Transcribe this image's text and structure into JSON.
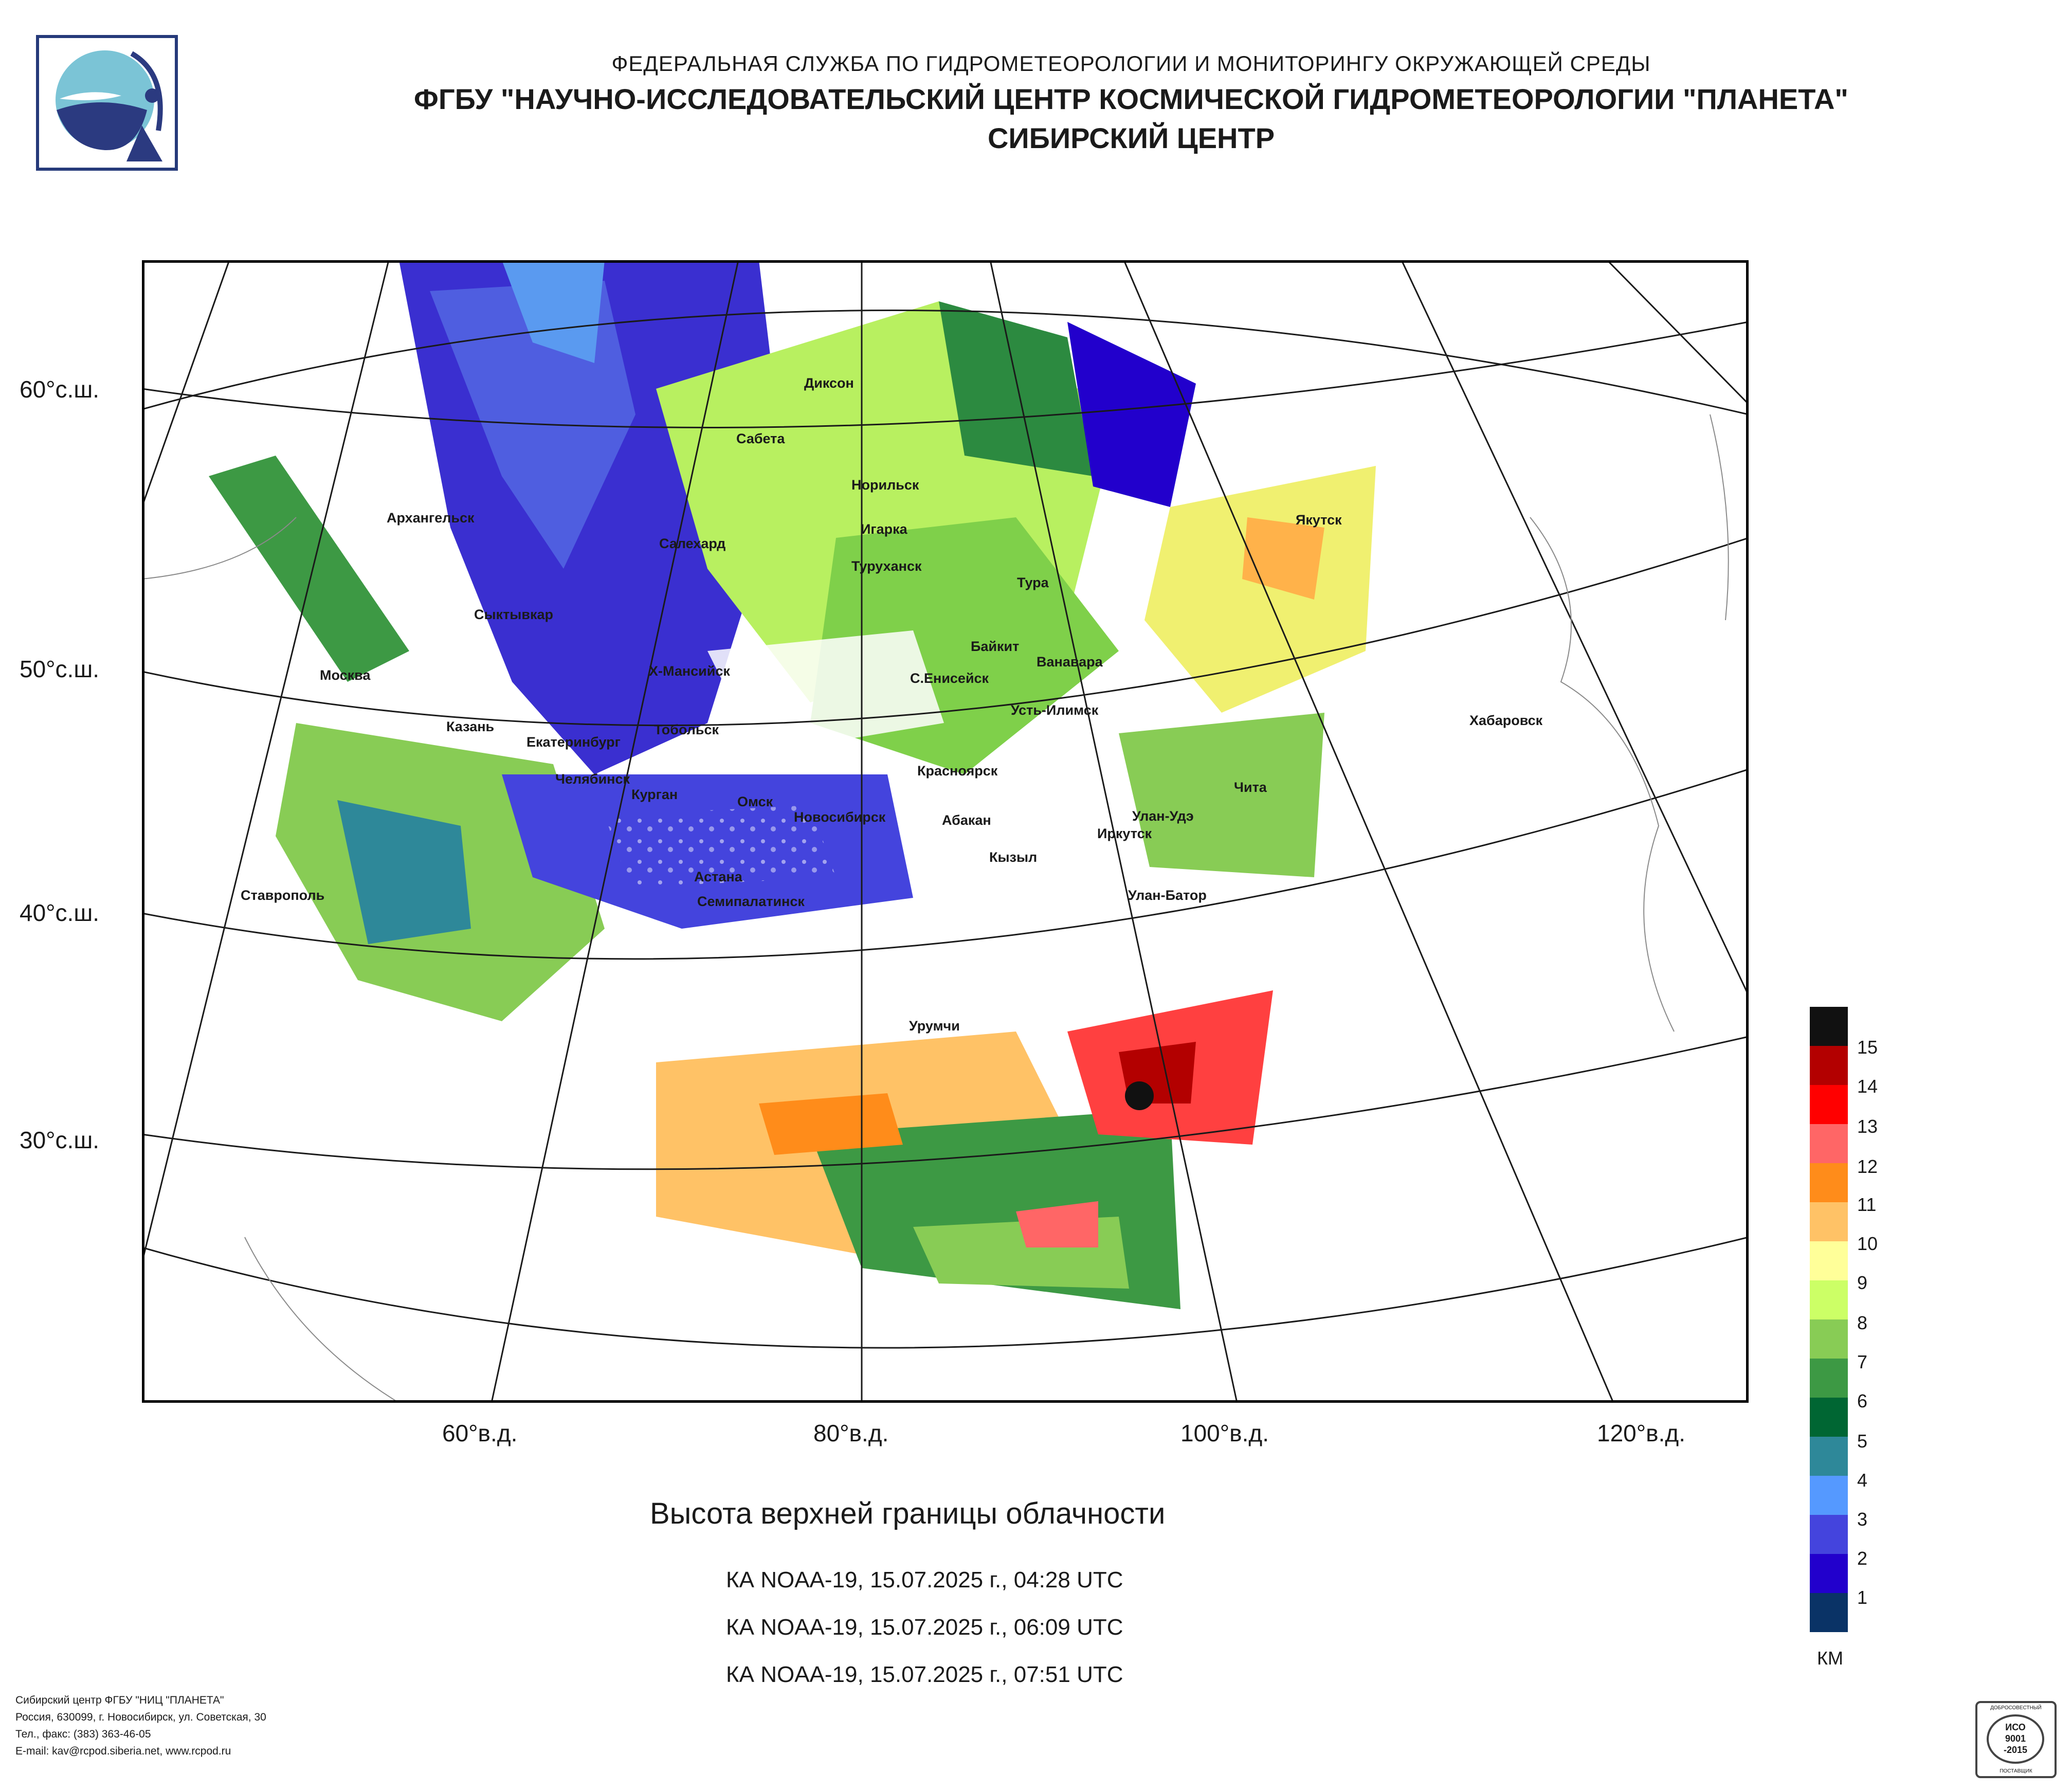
{
  "header": {
    "agency": "ФЕДЕРАЛЬНАЯ СЛУЖБА ПО ГИДРОМЕТЕОРОЛОГИИ И МОНИТОРИНГУ ОКРУЖАЮЩЕЙ СРЕДЫ",
    "institute": "ФГБУ \"НАУЧНО-ИССЛЕДОВАТЕЛЬСКИЙ ЦЕНТР КОСМИЧЕСКОЙ ГИДРОМЕТЕОРОЛОГИИ \"ПЛАНЕТА\"",
    "center": "СИБИРСКИЙ ЦЕНТР"
  },
  "map": {
    "latitude_labels": [
      "60°с.ш.",
      "50°с.ш.",
      "40°с.ш.",
      "30°с.ш."
    ],
    "longitude_labels": [
      "60°в.д.",
      "80°в.д.",
      "100°в.д.",
      "120°в.д."
    ],
    "cities": [
      "Диксон",
      "Сабета",
      "Норильск",
      "Архангельск",
      "Игарка",
      "Салехард",
      "Туруханск",
      "Тура",
      "Якутск",
      "Сыктывкар",
      "Байкит",
      "Ванавара",
      "Москва",
      "Х-Мансийск",
      "С.Енисейск",
      "Усть-Илимск",
      "Хабаровск",
      "Казань",
      "Тобольск",
      "Екатеринбург",
      "Красноярск",
      "Челябинск",
      "Курган",
      "Чита",
      "Омск",
      "Новосибирск",
      "Абакан",
      "Улан-Удэ",
      "Иркутск",
      "Кызыл",
      "Астана",
      "Ставрополь",
      "Улан-Батор",
      "Семипалатинск",
      "Урумчи"
    ]
  },
  "legend": {
    "unit": "КМ",
    "levels": [
      "15",
      "14",
      "13",
      "12",
      "11",
      "10",
      "9",
      "8",
      "7",
      "6",
      "5",
      "4",
      "3",
      "2",
      "1"
    ],
    "colors": [
      "#111111",
      "#b30000",
      "#ff0000",
      "#ff6666",
      "#ff8c1a",
      "#ffc266",
      "#ffff99",
      "#ccff66",
      "#88cc55",
      "#3d9944",
      "#006633",
      "#2e8899",
      "#5599ff",
      "#4444dd",
      "#2200cc",
      "#0a3366"
    ]
  },
  "product": {
    "title": "Высота верхней границы облачности",
    "passes": [
      "КА NOAA-19, 15.07.2025 г., 04:28 UTC",
      "КА NOAA-19, 15.07.2025 г., 06:09 UTC",
      "КА NOAA-19, 15.07.2025 г., 07:51 UTC"
    ]
  },
  "footer": {
    "lines": [
      "Сибирский центр ФГБУ \"НИЦ \"ПЛАНЕТА\"",
      "Россия, 630099, г. Новосибирск, ул. Советская, 30",
      "Тел., факс: (383) 363-46-05",
      "E-mail: kav@rcpod.siberia.net, www.rcpod.ru"
    ]
  },
  "certification": {
    "top": "ДОБРОСОВЕСТНЫЙ",
    "line1": "ИСО",
    "line2": "9001",
    "line3": "-2015",
    "bottom": "ПОСТАВЩИК"
  }
}
